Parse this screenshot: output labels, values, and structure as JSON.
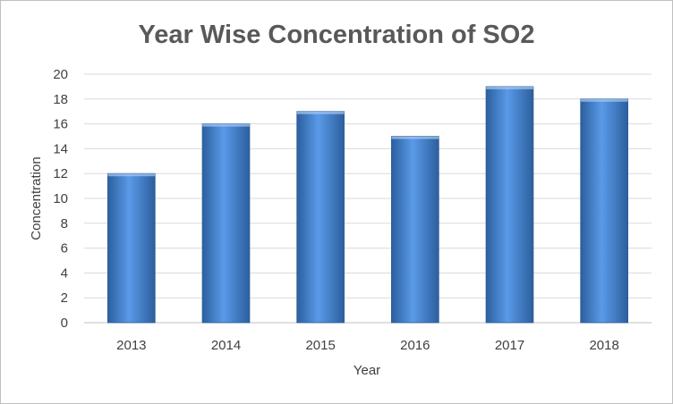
{
  "chart_data": {
    "type": "bar",
    "title": "Year Wise Concentration of SO2",
    "xlabel": "Year",
    "ylabel": "Concentration",
    "categories": [
      "2013",
      "2014",
      "2015",
      "2016",
      "2017",
      "2018"
    ],
    "values": [
      12,
      16,
      17,
      15,
      19,
      18
    ],
    "ylim": [
      0,
      20
    ],
    "yticks": [
      "0",
      "2",
      "4",
      "6",
      "8",
      "10",
      "12",
      "14",
      "16",
      "18",
      "20"
    ],
    "grid": true,
    "legend": "none",
    "bar_color": "#3d7fd6",
    "bar_color_light": "#5a9ae8",
    "bar_color_dark": "#2c5f9e"
  }
}
